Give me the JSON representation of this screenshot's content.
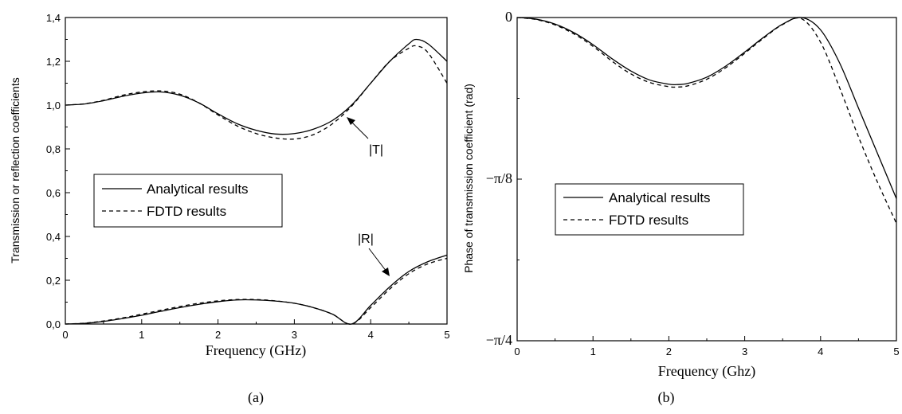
{
  "chart_data": [
    {
      "type": "line",
      "panel_label": "(a)",
      "xlabel": "Frequency (GHz)",
      "ylabel": "Transmission or reflection coefficients",
      "xlim": [
        0,
        5
      ],
      "ylim": [
        0,
        1.4
      ],
      "xticks": [
        0,
        1,
        2,
        3,
        4,
        5
      ],
      "xtick_labels": [
        "0",
        "1",
        "2",
        "3",
        "4",
        "5"
      ],
      "yticks": [
        0,
        0.2,
        0.4,
        0.6,
        0.8,
        1.0,
        1.2,
        1.4
      ],
      "ytick_labels": [
        "0,0",
        "0,2",
        "0,4",
        "0,6",
        "0,8",
        "1,0",
        "1,2",
        "1,4"
      ],
      "legend": {
        "position": "center-left",
        "entries": [
          {
            "label": "Analytical results",
            "style": "solid"
          },
          {
            "label": "FDTD results",
            "style": "dashed"
          }
        ]
      },
      "annotations": [
        "|T|",
        "|R|"
      ],
      "series": [
        {
          "curve": "|T|",
          "style": "solid",
          "x": [
            0,
            0.25,
            0.5,
            0.75,
            1.0,
            1.25,
            1.5,
            1.75,
            2.0,
            2.25,
            2.5,
            2.75,
            3.0,
            3.25,
            3.5,
            3.75,
            4.0,
            4.25,
            4.5,
            4.6,
            4.75,
            5.0
          ],
          "y": [
            1.0,
            1.005,
            1.02,
            1.04,
            1.055,
            1.06,
            1.045,
            1.01,
            0.96,
            0.915,
            0.885,
            0.868,
            0.87,
            0.89,
            0.93,
            1.0,
            1.1,
            1.2,
            1.28,
            1.3,
            1.28,
            1.2
          ]
        },
        {
          "curve": "|T|",
          "style": "dashed",
          "x": [
            0,
            0.25,
            0.5,
            0.75,
            1.0,
            1.25,
            1.5,
            1.75,
            2.0,
            2.25,
            2.5,
            2.75,
            3.0,
            3.25,
            3.5,
            3.75,
            4.0,
            4.25,
            4.5,
            4.6,
            4.75,
            5.0
          ],
          "y": [
            1.0,
            1.006,
            1.022,
            1.045,
            1.06,
            1.065,
            1.05,
            1.01,
            0.955,
            0.905,
            0.87,
            0.85,
            0.845,
            0.865,
            0.915,
            0.995,
            1.1,
            1.2,
            1.26,
            1.27,
            1.24,
            1.1
          ]
        },
        {
          "curve": "|R|",
          "style": "solid",
          "x": [
            0,
            0.25,
            0.5,
            0.75,
            1.0,
            1.25,
            1.5,
            1.75,
            2.0,
            2.25,
            2.5,
            2.75,
            3.0,
            3.25,
            3.5,
            3.75,
            4.0,
            4.25,
            4.5,
            4.75,
            5.0
          ],
          "y": [
            0.0,
            0.003,
            0.012,
            0.025,
            0.04,
            0.058,
            0.075,
            0.09,
            0.102,
            0.11,
            0.11,
            0.105,
            0.095,
            0.075,
            0.045,
            0.0,
            0.085,
            0.17,
            0.24,
            0.285,
            0.315
          ]
        },
        {
          "curve": "|R|",
          "style": "dashed",
          "x": [
            0,
            0.25,
            0.5,
            0.75,
            1.0,
            1.25,
            1.5,
            1.75,
            2.0,
            2.25,
            2.5,
            2.75,
            3.0,
            3.25,
            3.5,
            3.75,
            4.0,
            4.25,
            4.5,
            4.75,
            5.0
          ],
          "y": [
            0.0,
            0.004,
            0.014,
            0.028,
            0.045,
            0.063,
            0.08,
            0.095,
            0.106,
            0.112,
            0.112,
            0.106,
            0.095,
            0.075,
            0.045,
            0.0,
            0.075,
            0.16,
            0.23,
            0.275,
            0.3
          ]
        }
      ]
    },
    {
      "type": "line",
      "panel_label": "(b)",
      "xlabel": "Frequency (Ghz)",
      "ylabel": "Phase of transmission coefficient (rad)",
      "xlim": [
        0,
        5
      ],
      "ylim": [
        -0.7854,
        0
      ],
      "xticks": [
        0,
        1,
        2,
        3,
        4,
        5
      ],
      "xtick_labels": [
        "0",
        "1",
        "2",
        "3",
        "4",
        "5"
      ],
      "yticks": [
        0,
        -0.3927,
        -0.7854
      ],
      "ytick_labels": [
        "0",
        "−π/8",
        "−π/4"
      ],
      "legend": {
        "position": "center-left",
        "entries": [
          {
            "label": "Analytical results",
            "style": "solid"
          },
          {
            "label": "FDTD results",
            "style": "dashed"
          }
        ]
      },
      "series": [
        {
          "style": "solid",
          "x": [
            0,
            0.25,
            0.5,
            0.75,
            1.0,
            1.25,
            1.5,
            1.75,
            2.0,
            2.1,
            2.25,
            2.5,
            2.75,
            3.0,
            3.25,
            3.5,
            3.75,
            4.0,
            4.25,
            4.5,
            4.75,
            5.0
          ],
          "y": [
            0.0,
            -0.004,
            -0.016,
            -0.037,
            -0.066,
            -0.1,
            -0.13,
            -0.152,
            -0.162,
            -0.163,
            -0.16,
            -0.145,
            -0.118,
            -0.084,
            -0.048,
            -0.016,
            0.0,
            -0.03,
            -0.11,
            -0.22,
            -0.33,
            -0.44
          ]
        },
        {
          "style": "dashed",
          "x": [
            0,
            0.25,
            0.5,
            0.75,
            1.0,
            1.25,
            1.5,
            1.75,
            2.0,
            2.1,
            2.25,
            2.5,
            2.75,
            3.0,
            3.25,
            3.5,
            3.75,
            4.0,
            4.25,
            4.5,
            4.75,
            5.0
          ],
          "y": [
            0.0,
            -0.005,
            -0.018,
            -0.04,
            -0.07,
            -0.106,
            -0.137,
            -0.158,
            -0.168,
            -0.169,
            -0.166,
            -0.15,
            -0.122,
            -0.087,
            -0.05,
            -0.017,
            -0.003,
            -0.06,
            -0.17,
            -0.29,
            -0.4,
            -0.5
          ]
        }
      ]
    }
  ]
}
